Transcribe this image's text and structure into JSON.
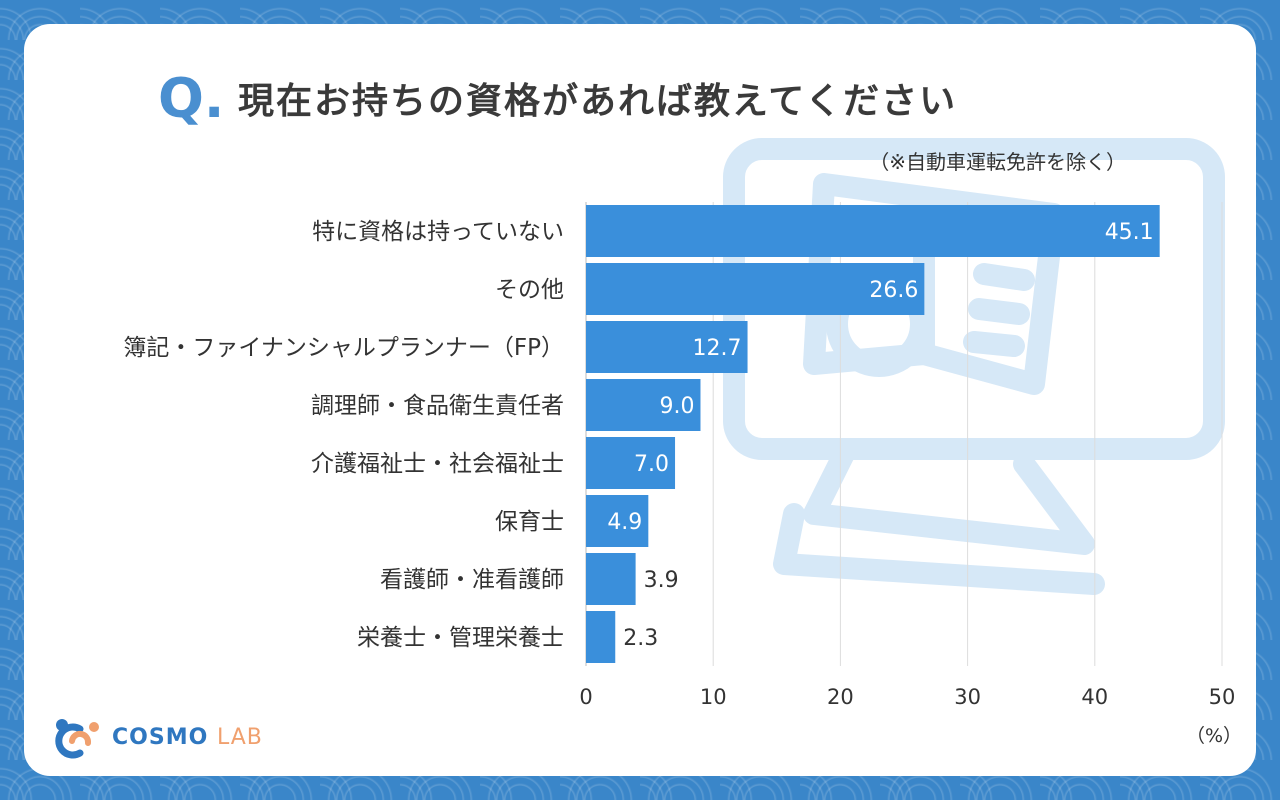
{
  "header": {
    "q_mark": "Q.",
    "title": "現在お持ちの資格があれば教えてください",
    "subtitle": "（※自動車運転免許を除く）"
  },
  "logo": {
    "brand": "COSMO",
    "suffix": "LAB",
    "icon": "cosmo-lab-logo-icon"
  },
  "colors": {
    "bar": "#3a8fdb",
    "accent": "#4a8fd0",
    "frame": "#3a86c9",
    "grid": "#dcdcdc"
  },
  "chart_data": {
    "type": "bar",
    "orientation": "horizontal",
    "categories": [
      "特に資格は持っていない",
      "その他",
      "簿記・ファイナンシャルプランナー（FP）",
      "調理師・食品衛生責任者",
      "介護福祉士・社会福祉士",
      "保育士",
      "看護師・准看護師",
      "栄養士・管理栄養士"
    ],
    "values": [
      45.1,
      26.6,
      12.7,
      9.0,
      7.0,
      4.9,
      3.9,
      2.3
    ],
    "value_labels": [
      "45.1",
      "26.6",
      "12.7",
      "9.0",
      "7.0",
      "4.9",
      "3.9",
      "2.3"
    ],
    "xlim": [
      0,
      50
    ],
    "xticks": [
      0,
      10,
      20,
      30,
      40,
      50
    ],
    "xunit": "（%）",
    "grid": true
  }
}
